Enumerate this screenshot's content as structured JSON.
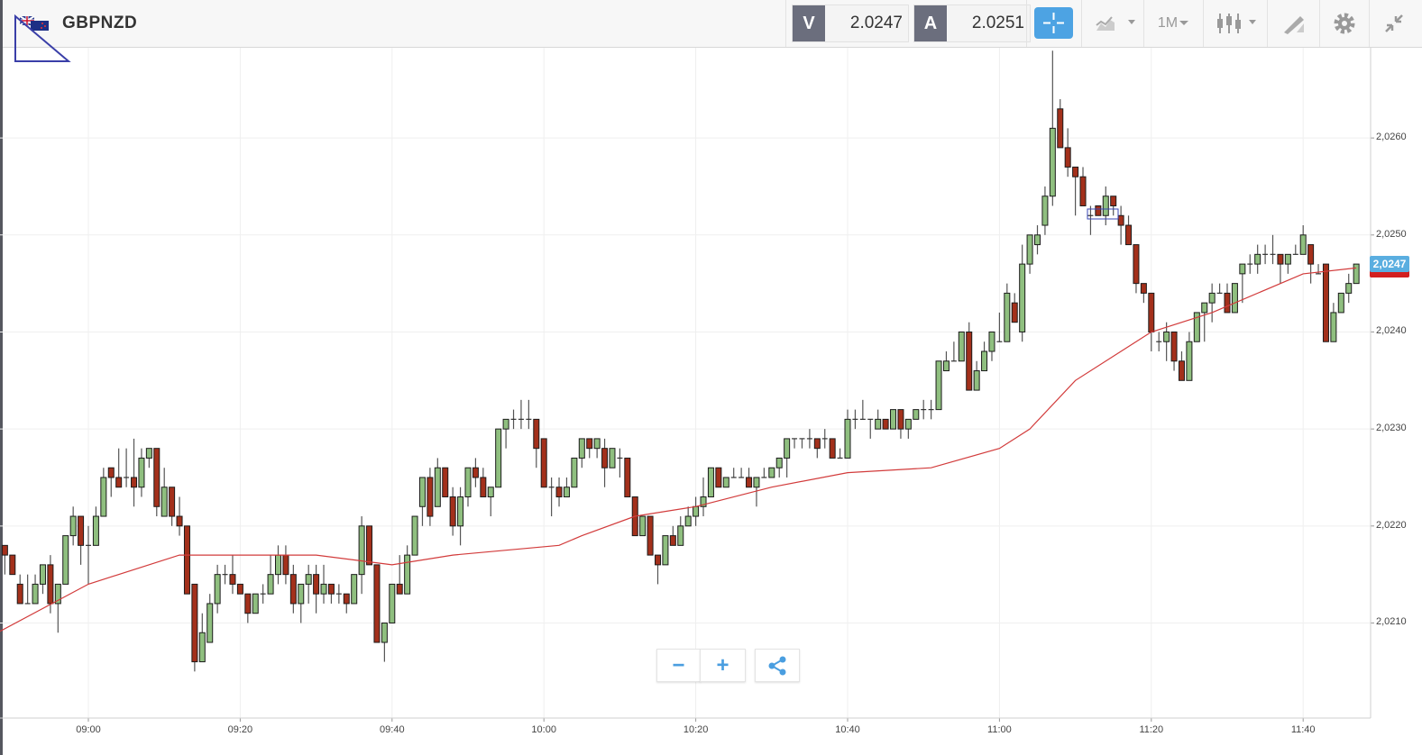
{
  "header": {
    "symbol": "GBPNZD",
    "flag_icon": "gb-nz-flag-icon",
    "bid_label": "V",
    "bid_value": "2.0247",
    "ask_label": "A",
    "ask_value": "2.0251",
    "timeframe": "1M",
    "icons": [
      "crosshair-icon",
      "chart-type-icon",
      "candlestick-icon",
      "drawing-tool-icon",
      "gear-icon",
      "collapse-icon"
    ]
  },
  "controls": {
    "zoom_out": "−",
    "zoom_in": "+",
    "share_icon": "share-icon"
  },
  "colors": {
    "up": "#8fbf7f",
    "down": "#a3301b",
    "ma": "#d23b3b",
    "accent": "#4da3e3",
    "price_tag": "#5aaee0"
  },
  "chart_data": {
    "type": "candlestick",
    "symbol": "GBPNZD",
    "interval_minutes": 1,
    "start_time": "08:49",
    "ylim": [
      2.02002,
      2.02693
    ],
    "y_ticks": [
      "2,0210",
      "2,0220",
      "2,0230",
      "2,0240",
      "2,0250",
      "2,0260"
    ],
    "y_tick_values": [
      2.021,
      2.022,
      2.023,
      2.024,
      2.025,
      2.026
    ],
    "x_ticks": [
      "09:00",
      "09:20",
      "09:40",
      "10:00",
      "10:20",
      "10:40",
      "11:00",
      "11:20",
      "11:40"
    ],
    "last_price_label": "2,0247",
    "last_price": 2.0247,
    "grid": true,
    "ohlc": [
      [
        2.0218,
        2.0218,
        2.0215,
        2.0217
      ],
      [
        2.0217,
        2.0217,
        2.0215,
        2.0215
      ],
      [
        2.0214,
        2.0215,
        2.0212,
        2.0212
      ],
      [
        2.0212,
        2.0215,
        2.0212,
        2.0212
      ],
      [
        2.0212,
        2.0215,
        2.0212,
        2.0214
      ],
      [
        2.0214,
        2.0216,
        2.0213,
        2.0216
      ],
      [
        2.0216,
        2.0217,
        2.0211,
        2.0212
      ],
      [
        2.0212,
        2.0214,
        2.0209,
        2.0214
      ],
      [
        2.0214,
        2.0219,
        2.0214,
        2.0219
      ],
      [
        2.0219,
        2.0222,
        2.0218,
        2.0221
      ],
      [
        2.0221,
        2.0221,
        2.0216,
        2.0218
      ],
      [
        2.0218,
        2.022,
        2.0214,
        2.0218
      ],
      [
        2.0218,
        2.0222,
        2.0218,
        2.0221
      ],
      [
        2.0221,
        2.0226,
        2.0221,
        2.0225
      ],
      [
        2.0226,
        2.0226,
        2.0223,
        2.0225
      ],
      [
        2.0225,
        2.0228,
        2.0224,
        2.0224
      ],
      [
        2.0225,
        2.0228,
        2.0224,
        2.0225
      ],
      [
        2.0225,
        2.0229,
        2.0222,
        2.0224
      ],
      [
        2.0224,
        2.0228,
        2.0223,
        2.0227
      ],
      [
        2.0227,
        2.0228,
        2.0226,
        2.0228
      ],
      [
        2.0228,
        2.0228,
        2.0221,
        2.0222
      ],
      [
        2.0221,
        2.0226,
        2.0221,
        2.0224
      ],
      [
        2.0224,
        2.0224,
        2.022,
        2.0221
      ],
      [
        2.0221,
        2.0223,
        2.0219,
        2.022
      ],
      [
        2.022,
        2.022,
        2.0213,
        2.0213
      ],
      [
        2.0214,
        2.0214,
        2.0205,
        2.0206
      ],
      [
        2.0206,
        2.0211,
        2.0206,
        2.0209
      ],
      [
        2.0208,
        2.0213,
        2.0208,
        2.0212
      ],
      [
        2.0212,
        2.0216,
        2.0211,
        2.0215
      ],
      [
        2.0215,
        2.0216,
        2.0214,
        2.0215
      ],
      [
        2.0215,
        2.0217,
        2.0213,
        2.0214
      ],
      [
        2.0214,
        2.0214,
        2.0213,
        2.0213
      ],
      [
        2.0213,
        2.0213,
        2.021,
        2.0211
      ],
      [
        2.0211,
        2.0213,
        2.0211,
        2.0213
      ],
      [
        2.0213,
        2.0214,
        2.0212,
        2.0213
      ],
      [
        2.0213,
        2.0217,
        2.0213,
        2.0215
      ],
      [
        2.0215,
        2.0218,
        2.0214,
        2.0217
      ],
      [
        2.0217,
        2.0218,
        2.0214,
        2.0215
      ],
      [
        2.0215,
        2.0216,
        2.0211,
        2.0212
      ],
      [
        2.0212,
        2.0214,
        2.021,
        2.0214
      ],
      [
        2.0214,
        2.0216,
        2.0212,
        2.0215
      ],
      [
        2.0215,
        2.0216,
        2.0211,
        2.0213
      ],
      [
        2.0213,
        2.0216,
        2.0212,
        2.0214
      ],
      [
        2.0214,
        2.0214,
        2.0212,
        2.0213
      ],
      [
        2.0213,
        2.0214,
        2.0212,
        2.0213
      ],
      [
        2.0213,
        2.0213,
        2.0211,
        2.0212
      ],
      [
        2.0212,
        2.0215,
        2.0212,
        2.0215
      ],
      [
        2.0215,
        2.0221,
        2.0213,
        2.022
      ],
      [
        2.022,
        2.022,
        2.0216,
        2.0216
      ],
      [
        2.0216,
        2.0216,
        2.0208,
        2.0208
      ],
      [
        2.0208,
        2.021,
        2.0206,
        2.021
      ],
      [
        2.021,
        2.0214,
        2.021,
        2.0214
      ],
      [
        2.0214,
        2.0217,
        2.0213,
        2.0213
      ],
      [
        2.0213,
        2.0218,
        2.0213,
        2.0217
      ],
      [
        2.0217,
        2.0221,
        2.0217,
        2.0221
      ],
      [
        2.0222,
        2.0225,
        2.022,
        2.0225
      ],
      [
        2.0225,
        2.0226,
        2.022,
        2.0221
      ],
      [
        2.0222,
        2.0227,
        2.0222,
        2.0226
      ],
      [
        2.0226,
        2.0226,
        2.0223,
        2.0223
      ],
      [
        2.0223,
        2.0224,
        2.0219,
        2.022
      ],
      [
        2.022,
        2.0224,
        2.0218,
        2.0223
      ],
      [
        2.0223,
        2.0226,
        2.0222,
        2.0226
      ],
      [
        2.0226,
        2.0227,
        2.0224,
        2.0225
      ],
      [
        2.0225,
        2.0226,
        2.0223,
        2.0223
      ],
      [
        2.0223,
        2.0224,
        2.0221,
        2.0224
      ],
      [
        2.0224,
        2.023,
        2.0224,
        2.023
      ],
      [
        2.023,
        2.0231,
        2.0228,
        2.0231
      ],
      [
        2.0231,
        2.0232,
        2.023,
        2.0231
      ],
      [
        2.0231,
        2.0233,
        2.023,
        2.0231
      ],
      [
        2.0231,
        2.0233,
        2.023,
        2.0231
      ],
      [
        2.0231,
        2.0231,
        2.0226,
        2.0228
      ],
      [
        2.0229,
        2.0229,
        2.0224,
        2.0224
      ],
      [
        2.0224,
        2.0225,
        2.0221,
        2.0224
      ],
      [
        2.0224,
        2.0225,
        2.0222,
        2.0223
      ],
      [
        2.0223,
        2.0225,
        2.0223,
        2.0224
      ],
      [
        2.0224,
        2.0227,
        2.0224,
        2.0227
      ],
      [
        2.0227,
        2.0229,
        2.0226,
        2.0229
      ],
      [
        2.0229,
        2.0229,
        2.0227,
        2.0228
      ],
      [
        2.0228,
        2.0229,
        2.0227,
        2.0229
      ],
      [
        2.0228,
        2.0229,
        2.0224,
        2.0226
      ],
      [
        2.0226,
        2.0228,
        2.0226,
        2.0228
      ],
      [
        2.0227,
        2.0228,
        2.0225,
        2.0227
      ],
      [
        2.0227,
        2.0227,
        2.0223,
        2.0223
      ],
      [
        2.0223,
        2.0223,
        2.0219,
        2.0219
      ],
      [
        2.0219,
        2.0221,
        2.0219,
        2.0221
      ],
      [
        2.0221,
        2.0221,
        2.0217,
        2.0217
      ],
      [
        2.0217,
        2.0217,
        2.0214,
        2.0216
      ],
      [
        2.0216,
        2.0219,
        2.0216,
        2.0219
      ],
      [
        2.0219,
        2.022,
        2.0218,
        2.0218
      ],
      [
        2.0218,
        2.0221,
        2.0218,
        2.022
      ],
      [
        2.022,
        2.0222,
        2.022,
        2.0221
      ],
      [
        2.0221,
        2.0223,
        2.022,
        2.0222
      ],
      [
        2.0222,
        2.0225,
        2.0221,
        2.0223
      ],
      [
        2.0223,
        2.0226,
        2.0223,
        2.0226
      ],
      [
        2.0226,
        2.0226,
        2.0224,
        2.0224
      ],
      [
        2.0224,
        2.0225,
        2.0224,
        2.0225
      ],
      [
        2.0225,
        2.0226,
        2.0225,
        2.0225
      ],
      [
        2.0225,
        2.0226,
        2.0225,
        2.0225
      ],
      [
        2.0225,
        2.0226,
        2.0224,
        2.0224
      ],
      [
        2.0224,
        2.0225,
        2.0222,
        2.0225
      ],
      [
        2.0225,
        2.0226,
        2.0225,
        2.0225
      ],
      [
        2.0225,
        2.0226,
        2.0225,
        2.0226
      ],
      [
        2.0226,
        2.0227,
        2.0225,
        2.0227
      ],
      [
        2.0227,
        2.0229,
        2.0225,
        2.0229
      ],
      [
        2.0229,
        2.0229,
        2.0228,
        2.0229
      ],
      [
        2.0229,
        2.0229,
        2.0228,
        2.0229
      ],
      [
        2.0229,
        2.023,
        2.0228,
        2.0229
      ],
      [
        2.0229,
        2.0229,
        2.0227,
        2.0228
      ],
      [
        2.0229,
        2.023,
        2.0228,
        2.0229
      ],
      [
        2.0229,
        2.0229,
        2.0227,
        2.0227
      ],
      [
        2.0227,
        2.0228,
        2.0227,
        2.0227
      ],
      [
        2.0227,
        2.0232,
        2.0227,
        2.0231
      ],
      [
        2.0231,
        2.0232,
        2.023,
        2.0231
      ],
      [
        2.0231,
        2.0233,
        2.0231,
        2.0231
      ],
      [
        2.0231,
        2.0231,
        2.0229,
        2.0231
      ],
      [
        2.023,
        2.0232,
        2.023,
        2.0231
      ],
      [
        2.0231,
        2.0231,
        2.023,
        2.023
      ],
      [
        2.023,
        2.0232,
        2.023,
        2.0232
      ],
      [
        2.0232,
        2.0232,
        2.0229,
        2.023
      ],
      [
        2.023,
        2.0231,
        2.0229,
        2.0231
      ],
      [
        2.0231,
        2.0232,
        2.0231,
        2.0232
      ],
      [
        2.0232,
        2.0233,
        2.0231,
        2.0232
      ],
      [
        2.0232,
        2.0233,
        2.0231,
        2.0232
      ],
      [
        2.0232,
        2.0237,
        2.0232,
        2.0237
      ],
      [
        2.0236,
        2.0238,
        2.0236,
        2.0237
      ],
      [
        2.0237,
        2.0239,
        2.0237,
        2.0237
      ],
      [
        2.0237,
        2.024,
        2.0237,
        2.024
      ],
      [
        2.024,
        2.0241,
        2.0234,
        2.0234
      ],
      [
        2.0234,
        2.0237,
        2.0234,
        2.0236
      ],
      [
        2.0236,
        2.0239,
        2.0236,
        2.0238
      ],
      [
        2.0238,
        2.024,
        2.0237,
        2.024
      ],
      [
        2.0239,
        2.0242,
        2.0239,
        2.0239
      ],
      [
        2.0239,
        2.0245,
        2.0239,
        2.0244
      ],
      [
        2.0243,
        2.0244,
        2.0241,
        2.0241
      ],
      [
        2.024,
        2.0249,
        2.0239,
        2.0247
      ],
      [
        2.0247,
        2.025,
        2.0246,
        2.025
      ],
      [
        2.0249,
        2.0251,
        2.0248,
        2.025
      ],
      [
        2.0251,
        2.0255,
        2.025,
        2.0254
      ],
      [
        2.0254,
        2.0269,
        2.0253,
        2.0261
      ],
      [
        2.0263,
        2.0264,
        2.0259,
        2.0259
      ],
      [
        2.0259,
        2.0261,
        2.0256,
        2.0257
      ],
      [
        2.0257,
        2.0257,
        2.0252,
        2.0256
      ],
      [
        2.0256,
        2.0257,
        2.0253,
        2.0253
      ],
      [
        2.0252,
        2.0253,
        2.025,
        2.0252
      ],
      [
        2.0253,
        2.0253,
        2.0252,
        2.0252
      ],
      [
        2.0252,
        2.0255,
        2.0251,
        2.0254
      ],
      [
        2.0254,
        2.0254,
        2.0252,
        2.0253
      ],
      [
        2.0252,
        2.0253,
        2.0249,
        2.0251
      ],
      [
        2.0251,
        2.0252,
        2.0249,
        2.0249
      ],
      [
        2.0249,
        2.0249,
        2.0244,
        2.0245
      ],
      [
        2.0245,
        2.0245,
        2.0243,
        2.0244
      ],
      [
        2.0244,
        2.0244,
        2.0238,
        2.024
      ],
      [
        2.0239,
        2.024,
        2.0238,
        2.0239
      ],
      [
        2.0239,
        2.0241,
        2.0237,
        2.024
      ],
      [
        2.024,
        2.024,
        2.0236,
        2.0237
      ],
      [
        2.0237,
        2.0238,
        2.0235,
        2.0235
      ],
      [
        2.0235,
        2.024,
        2.0235,
        2.0239
      ],
      [
        2.0239,
        2.0242,
        2.0239,
        2.0242
      ],
      [
        2.0242,
        2.0243,
        2.0239,
        2.0243
      ],
      [
        2.0243,
        2.0245,
        2.0241,
        2.0244
      ],
      [
        2.0244,
        2.0245,
        2.0244,
        2.0244
      ],
      [
        2.0244,
        2.0245,
        2.0242,
        2.0242
      ],
      [
        2.0242,
        2.0245,
        2.0242,
        2.0245
      ],
      [
        2.0246,
        2.0247,
        2.0243,
        2.0247
      ],
      [
        2.0247,
        2.0248,
        2.0246,
        2.0247
      ],
      [
        2.0247,
        2.0249,
        2.0246,
        2.0248
      ],
      [
        2.0248,
        2.0249,
        2.0247,
        2.0248
      ],
      [
        2.0248,
        2.025,
        2.0247,
        2.0248
      ],
      [
        2.0248,
        2.0248,
        2.0245,
        2.0247
      ],
      [
        2.0247,
        2.0248,
        2.0246,
        2.0248
      ],
      [
        2.0248,
        2.0249,
        2.0248,
        2.0248
      ],
      [
        2.0248,
        2.0251,
        2.0248,
        2.025
      ],
      [
        2.0249,
        2.0249,
        2.0245,
        2.0247
      ],
      [
        2.0246,
        2.0247,
        2.0246,
        2.0246
      ],
      [
        2.0247,
        2.0247,
        2.0239,
        2.0239
      ],
      [
        2.0239,
        2.0243,
        2.0239,
        2.0242
      ],
      [
        2.0242,
        2.0244,
        2.0242,
        2.0244
      ],
      [
        2.0244,
        2.0246,
        2.0243,
        2.0245
      ],
      [
        2.0245,
        2.0247,
        2.0245,
        2.0247
      ]
    ],
    "moving_average": {
      "times": [
        "08:48",
        "09:00",
        "09:12",
        "09:20",
        "09:30",
        "09:40",
        "09:48",
        "10:02",
        "10:05",
        "10:12",
        "10:20",
        "10:30",
        "10:40",
        "10:51",
        "11:00",
        "11:04",
        "11:10",
        "11:20",
        "11:28",
        "11:40",
        "11:47"
      ],
      "values": [
        2.0209,
        2.0214,
        2.0217,
        2.0217,
        2.0217,
        2.0216,
        2.0217,
        2.0218,
        2.0219,
        2.0221,
        2.0222,
        2.0224,
        2.02255,
        2.0226,
        2.0228,
        2.023,
        2.0235,
        2.024,
        2.0242,
        2.0246,
        2.02466
      ]
    }
  }
}
